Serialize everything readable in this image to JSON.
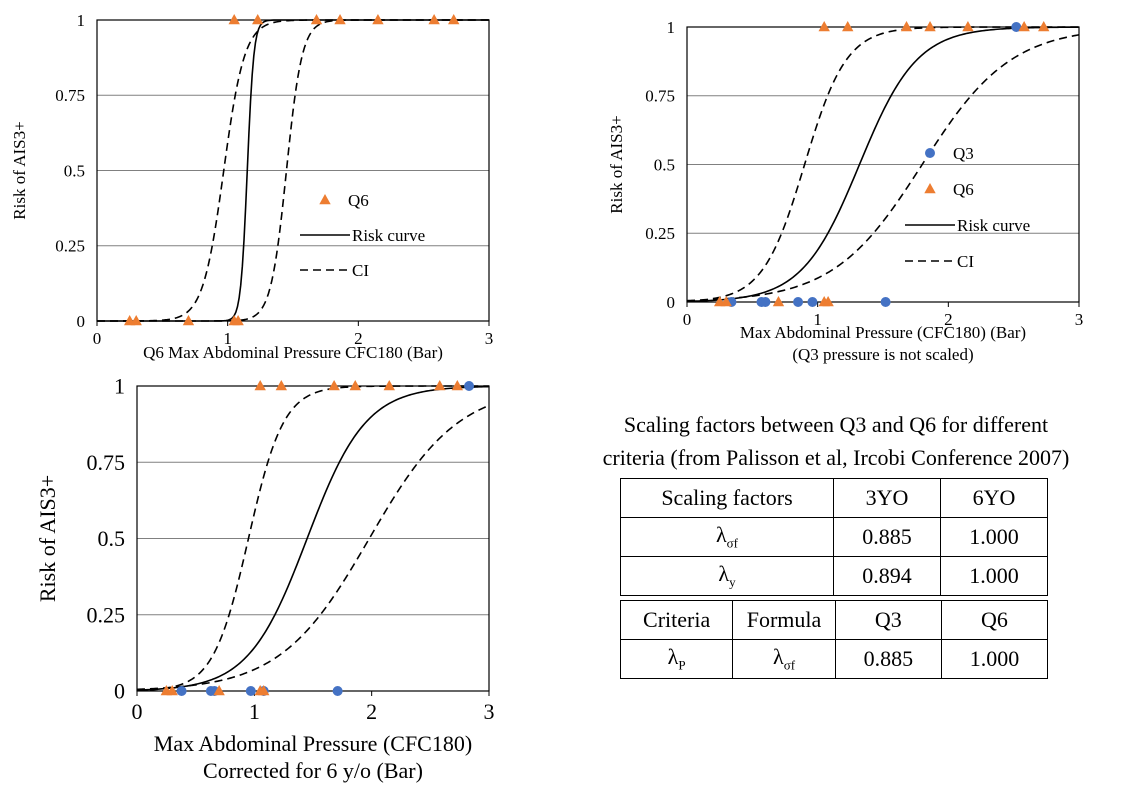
{
  "colors": {
    "q6": "#ED7D31",
    "q3": "#4472C4",
    "curve": "#000000",
    "grid": "#808080"
  },
  "charts": [
    {
      "id": "c1",
      "ylabel": "Risk of AIS3+",
      "xlabel_lines": [
        "Q6 Max Abdominal Pressure CFC180 (Bar)"
      ],
      "legend": {
        "q6": "Q6",
        "risk": "Risk curve",
        "ci": "CI"
      }
    },
    {
      "id": "c2",
      "ylabel": "Risk of AIS3+",
      "xlabel_lines": [
        "Max Abdominal Pressure (CFC180)  (Bar)",
        "(Q3 pressure is not scaled)"
      ],
      "legend": {
        "q3": "Q3",
        "q6": "Q6",
        "risk": "Risk curve",
        "ci": "CI"
      }
    },
    {
      "id": "c3",
      "ylabel": "Risk of AIS3+",
      "xlabel_lines": [
        "Max Abdominal Pressure (CFC180)",
        "Corrected for 6 y/o (Bar)"
      ]
    }
  ],
  "chart_data": [
    {
      "type": "scatter",
      "xlim": [
        0,
        3
      ],
      "ylim": [
        0,
        1
      ],
      "xticks": [
        "0",
        "1",
        "2",
        "3"
      ],
      "yticks": [
        "0",
        "0.25",
        "0.5",
        "0.75",
        "1"
      ],
      "grid": "horizontal",
      "series": [
        {
          "name": "Q6",
          "marker": "triangle",
          "points": [
            [
              0.25,
              0
            ],
            [
              0.3,
              0
            ],
            [
              0.7,
              0
            ],
            [
              1.05,
              0
            ],
            [
              1.08,
              0
            ],
            [
              1.05,
              1
            ],
            [
              1.23,
              1
            ],
            [
              1.68,
              1
            ],
            [
              1.86,
              1
            ],
            [
              2.15,
              1
            ],
            [
              2.58,
              1
            ],
            [
              2.73,
              1
            ]
          ]
        }
      ],
      "risk_curve": {
        "center": 1.15,
        "width": 0.025
      },
      "ci_lower": {
        "center": 0.97,
        "width": 0.08
      },
      "ci_upper": {
        "center": 1.45,
        "width": 0.06
      }
    },
    {
      "type": "scatter",
      "xlim": [
        0,
        3
      ],
      "ylim": [
        0,
        1
      ],
      "xticks": [
        "0",
        "1",
        "2",
        "3"
      ],
      "yticks": [
        "0",
        "0.25",
        "0.5",
        "0.75",
        "1"
      ],
      "grid": "horizontal",
      "series": [
        {
          "name": "Q3",
          "marker": "circle",
          "points": [
            [
              0.34,
              0
            ],
            [
              0.57,
              0
            ],
            [
              0.6,
              0
            ],
            [
              0.85,
              0
            ],
            [
              0.96,
              0
            ],
            [
              1.52,
              0
            ],
            [
              2.52,
              1
            ]
          ]
        },
        {
          "name": "Q6",
          "marker": "triangle",
          "points": [
            [
              0.25,
              0
            ],
            [
              0.3,
              0
            ],
            [
              0.7,
              0
            ],
            [
              1.05,
              0
            ],
            [
              1.08,
              0
            ],
            [
              1.05,
              1
            ],
            [
              1.23,
              1
            ],
            [
              1.68,
              1
            ],
            [
              1.86,
              1
            ],
            [
              2.15,
              1
            ],
            [
              2.58,
              1
            ],
            [
              2.73,
              1
            ]
          ]
        }
      ],
      "risk_curve": {
        "center": 1.32,
        "width": 0.22
      },
      "ci_lower": {
        "center": 0.9,
        "width": 0.16
      },
      "ci_upper": {
        "center": 1.8,
        "width": 0.34
      }
    },
    {
      "type": "scatter",
      "xlim": [
        0,
        3
      ],
      "ylim": [
        0,
        1
      ],
      "xticks": [
        "0",
        "1",
        "2",
        "3"
      ],
      "yticks": [
        "0",
        "0.25",
        "0.5",
        "0.75",
        "1"
      ],
      "grid": "horizontal",
      "series": [
        {
          "name": "Q3",
          "marker": "circle",
          "points": [
            [
              0.38,
              0
            ],
            [
              0.63,
              0
            ],
            [
              0.66,
              0
            ],
            [
              0.97,
              0
            ],
            [
              1.08,
              0
            ],
            [
              1.71,
              0
            ],
            [
              2.83,
              1
            ]
          ]
        },
        {
          "name": "Q6",
          "marker": "triangle",
          "points": [
            [
              0.25,
              0
            ],
            [
              0.3,
              0
            ],
            [
              0.7,
              0
            ],
            [
              1.05,
              0
            ],
            [
              1.08,
              0
            ],
            [
              1.05,
              1
            ],
            [
              1.23,
              1
            ],
            [
              1.68,
              1
            ],
            [
              1.86,
              1
            ],
            [
              2.15,
              1
            ],
            [
              2.58,
              1
            ],
            [
              2.73,
              1
            ]
          ]
        }
      ],
      "risk_curve": {
        "center": 1.45,
        "width": 0.25
      },
      "ci_lower": {
        "center": 0.95,
        "width": 0.15
      },
      "ci_upper": {
        "center": 1.98,
        "width": 0.38
      }
    }
  ],
  "scaling": {
    "caption_line1": "Scaling factors between Q3 and Q6 for different",
    "caption_line2": "criteria (from Palisson et al, Ircobi Conference 2007)",
    "t1_header": [
      "Scaling factors",
      "3YO",
      "6YO"
    ],
    "t1_rows": [
      {
        "sym": "λ",
        "sub": "σf",
        "v1": "0.885",
        "v2": "1.000"
      },
      {
        "sym": "λ",
        "sub": "y",
        "v1": "0.894",
        "v2": "1.000"
      }
    ],
    "t2_header": [
      "Criteria",
      "Formula",
      "Q3",
      "Q6"
    ],
    "t2_row": {
      "crit_sym": "λ",
      "crit_sub": "P",
      "form_sym": "λ",
      "form_sub": "σf",
      "v1": "0.885",
      "v2": "1.000"
    }
  }
}
